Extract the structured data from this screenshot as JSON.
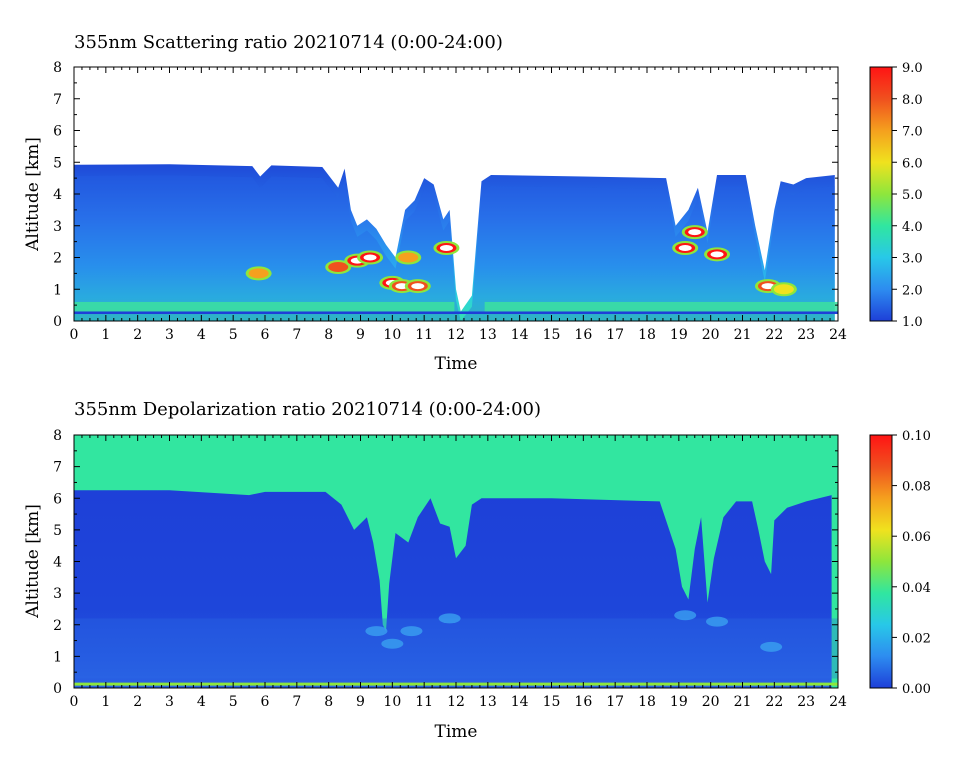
{
  "chart_data": [
    {
      "type": "heatmap",
      "title": "355nm Scattering ratio  20210714 (0:00-24:00)",
      "xlabel": "Time",
      "ylabel": "Altitude [km]",
      "xlim": [
        0,
        24
      ],
      "ylim": [
        0,
        8
      ],
      "x_ticks": [
        "0",
        "1",
        "2",
        "3",
        "4",
        "5",
        "6",
        "7",
        "8",
        "9",
        "10",
        "11",
        "12",
        "13",
        "14",
        "15",
        "16",
        "17",
        "18",
        "19",
        "20",
        "21",
        "22",
        "23",
        "24"
      ],
      "y_ticks": [
        "0",
        "1",
        "2",
        "3",
        "4",
        "5",
        "6",
        "7",
        "8"
      ],
      "colorbar": {
        "min": 1.0,
        "max": 9.0,
        "ticks": [
          "1.0",
          "2.0",
          "3.0",
          "4.0",
          "5.0",
          "6.0",
          "7.0",
          "8.0",
          "9.0"
        ],
        "colors": [
          "#1e3fd8",
          "#2d8cf0",
          "#28c8e8",
          "#30e6a0",
          "#8ee63c",
          "#f0e21e",
          "#f5a01e",
          "#f0501e",
          "#ff1414"
        ]
      },
      "signal_top_km": [
        [
          0,
          4.92
        ],
        [
          3,
          4.94
        ],
        [
          5.6,
          4.88
        ],
        [
          5.85,
          4.55
        ],
        [
          6.2,
          4.9
        ],
        [
          7.8,
          4.85
        ],
        [
          8.3,
          4.2
        ],
        [
          8.5,
          4.8
        ],
        [
          8.7,
          3.5
        ],
        [
          8.9,
          3.0
        ],
        [
          9.2,
          3.2
        ],
        [
          9.5,
          2.9
        ],
        [
          9.8,
          2.4
        ],
        [
          10.1,
          2.0
        ],
        [
          10.4,
          3.5
        ],
        [
          10.7,
          3.8
        ],
        [
          11.0,
          4.5
        ],
        [
          11.3,
          4.3
        ],
        [
          11.6,
          3.2
        ],
        [
          11.8,
          3.5
        ],
        [
          12.0,
          1.0
        ],
        [
          12.15,
          0.3
        ],
        [
          12.5,
          0.8
        ],
        [
          12.8,
          4.4
        ],
        [
          13.1,
          4.6
        ],
        [
          16,
          4.55
        ],
        [
          18.6,
          4.5
        ],
        [
          18.9,
          3.0
        ],
        [
          19.3,
          3.5
        ],
        [
          19.6,
          4.2
        ],
        [
          19.9,
          2.8
        ],
        [
          20.2,
          4.6
        ],
        [
          21.1,
          4.6
        ],
        [
          21.4,
          3.0
        ],
        [
          21.7,
          1.6
        ],
        [
          22.0,
          3.5
        ],
        [
          22.2,
          4.4
        ],
        [
          22.6,
          4.3
        ],
        [
          23.0,
          4.5
        ],
        [
          23.9,
          4.6
        ]
      ],
      "aerosol_features": [
        {
          "time": 5.8,
          "alt": 1.5,
          "sr": 6.5
        },
        {
          "time": 8.3,
          "alt": 1.7,
          "sr": 7.5
        },
        {
          "time": 8.9,
          "alt": 1.9,
          "sr": 9.0
        },
        {
          "time": 9.3,
          "alt": 2.0,
          "sr": 8.5
        },
        {
          "time": 10.0,
          "alt": 1.2,
          "sr": 9.0
        },
        {
          "time": 10.3,
          "alt": 1.1,
          "sr": 8.0
        },
        {
          "time": 10.8,
          "alt": 1.1,
          "sr": 8.0
        },
        {
          "time": 10.5,
          "alt": 2.0,
          "sr": 7.0
        },
        {
          "time": 11.7,
          "alt": 2.3,
          "sr": 8.5
        },
        {
          "time": 19.2,
          "alt": 2.3,
          "sr": 9.0
        },
        {
          "time": 19.5,
          "alt": 2.8,
          "sr": 8.5
        },
        {
          "time": 20.2,
          "alt": 2.1,
          "sr": 9.0
        },
        {
          "time": 21.8,
          "alt": 1.1,
          "sr": 8.0
        },
        {
          "time": 22.3,
          "alt": 1.0,
          "sr": 6.0
        }
      ]
    },
    {
      "type": "heatmap",
      "title": "355nm Depolarization ratio  20210714 (0:00-24:00)",
      "xlabel": "Time",
      "ylabel": "Altitude [km]",
      "xlim": [
        0,
        24
      ],
      "ylim": [
        0,
        8
      ],
      "x_ticks": [
        "0",
        "1",
        "2",
        "3",
        "4",
        "5",
        "6",
        "7",
        "8",
        "9",
        "10",
        "11",
        "12",
        "13",
        "14",
        "15",
        "16",
        "17",
        "18",
        "19",
        "20",
        "21",
        "22",
        "23",
        "24"
      ],
      "y_ticks": [
        "0",
        "1",
        "2",
        "3",
        "4",
        "5",
        "6",
        "7",
        "8"
      ],
      "colorbar": {
        "min": 0.0,
        "max": 0.1,
        "ticks": [
          "0.00",
          "0.02",
          "0.04",
          "0.06",
          "0.08",
          "0.10"
        ],
        "colors": [
          "#1e3fd8",
          "#2d8cf0",
          "#28c8e8",
          "#30e6a0",
          "#8ee63c",
          "#f0e21e",
          "#f5a01e",
          "#f0501e",
          "#ff1414"
        ]
      },
      "noise_boundary_km": [
        [
          0,
          6.25
        ],
        [
          3,
          6.25
        ],
        [
          5.5,
          6.1
        ],
        [
          6,
          6.2
        ],
        [
          7.9,
          6.2
        ],
        [
          8.4,
          5.8
        ],
        [
          8.8,
          5.0
        ],
        [
          9.2,
          5.4
        ],
        [
          9.4,
          4.6
        ],
        [
          9.6,
          3.4
        ],
        [
          9.7,
          2.0
        ],
        [
          9.8,
          1.8
        ],
        [
          9.9,
          3.3
        ],
        [
          10.1,
          4.9
        ],
        [
          10.5,
          4.6
        ],
        [
          10.8,
          5.4
        ],
        [
          11.2,
          6.0
        ],
        [
          11.5,
          5.2
        ],
        [
          11.8,
          5.1
        ],
        [
          12.0,
          4.1
        ],
        [
          12.3,
          4.5
        ],
        [
          12.5,
          5.8
        ],
        [
          12.8,
          6.0
        ],
        [
          15,
          6.0
        ],
        [
          18.4,
          5.9
        ],
        [
          18.9,
          4.4
        ],
        [
          19.1,
          3.2
        ],
        [
          19.3,
          2.8
        ],
        [
          19.5,
          4.4
        ],
        [
          19.7,
          5.4
        ],
        [
          19.9,
          2.7
        ],
        [
          20.1,
          4.1
        ],
        [
          20.4,
          5.4
        ],
        [
          20.8,
          5.9
        ],
        [
          21.3,
          5.9
        ],
        [
          21.5,
          5.0
        ],
        [
          21.7,
          4.0
        ],
        [
          21.9,
          3.6
        ],
        [
          22.0,
          5.3
        ],
        [
          22.4,
          5.7
        ],
        [
          23,
          5.9
        ],
        [
          23.8,
          6.1
        ]
      ],
      "surface_layer_km": 0.12
    }
  ]
}
